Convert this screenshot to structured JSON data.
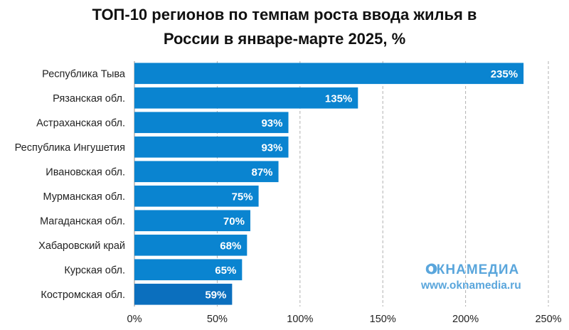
{
  "title_lines": [
    "ТОП-10 регионов по темпам роста ввода жилья в",
    "России в январе-марте 2025, %"
  ],
  "colors": {
    "bar": "#0a84d0",
    "bar_last": "#0b6fbe",
    "grid": "#b0b0b0",
    "axis": "#888888",
    "watermark": "#5aa6dc"
  },
  "watermark": {
    "brand": "ОКНАМЕДИА",
    "url": "www.oknamedia.ru"
  },
  "chart_data": {
    "type": "bar",
    "orientation": "horizontal",
    "title": "ТОП-10 регионов по темпам роста ввода жилья в России в январе-марте 2025, %",
    "categories": [
      "Республика Тыва",
      "Рязанская обл.",
      "Астраханская обл.",
      "Республика Ингушетия",
      "Ивановская обл.",
      "Мурманская обл.",
      "Магаданская обл.",
      "Хабаровский край",
      "Курская обл.",
      "Костромская обл."
    ],
    "values": [
      235,
      135,
      93,
      93,
      87,
      75,
      70,
      68,
      65,
      59
    ],
    "value_labels": [
      "235%",
      "135%",
      "93%",
      "93%",
      "87%",
      "75%",
      "70%",
      "68%",
      "65%",
      "59%"
    ],
    "xlim": [
      0,
      250
    ],
    "xticks": [
      0,
      50,
      100,
      150,
      200,
      250
    ],
    "xtick_labels": [
      "0%",
      "50%",
      "100%",
      "150%",
      "200%",
      "250%"
    ],
    "grid": true,
    "legend": "none"
  }
}
